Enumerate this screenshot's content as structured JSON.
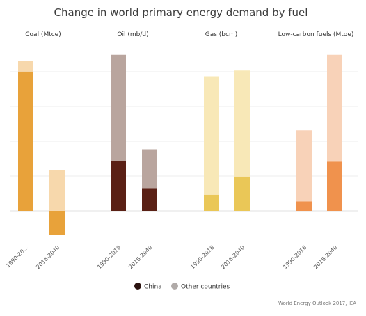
{
  "chart_data": {
    "type": "bar",
    "title": "Change in world primary energy demand by fuel",
    "ylim": [
      -140,
      900
    ],
    "gridlines": [
      0,
      200,
      400,
      600,
      800
    ],
    "grid": true,
    "legend_placement": "bottom-center",
    "panels": [
      {
        "label": "Coal (Mtce)",
        "color_china": "#e8a23a",
        "color_other": "#f7d8ac",
        "bars": [
          {
            "category": "1990-20...",
            "china": 801,
            "other": 59
          },
          {
            "category": "2016-2040",
            "china": -140,
            "other": 236
          }
        ]
      },
      {
        "label": "Oil (mb/d)",
        "color_china": "#5a2015",
        "color_other": "#b9a59e",
        "bars": [
          {
            "category": "1990-2016",
            "china": 288,
            "other": 609
          },
          {
            "category": "2016-2040",
            "china": 130,
            "other": 224
          }
        ]
      },
      {
        "label": "Gas (bcm)",
        "color_china": "#eac757",
        "color_other": "#f8e8b7",
        "bars": [
          {
            "category": "1990-2016",
            "china": 93,
            "other": 681
          },
          {
            "category": "2016-2040",
            "china": 197,
            "other": 610
          }
        ]
      },
      {
        "label": "Low-carbon fuels (Mtoe)",
        "color_china": "#f0924d",
        "color_other": "#f8d2b8",
        "bars": [
          {
            "category": "1990-2016",
            "china": 54,
            "other": 409
          },
          {
            "category": "2016-2040",
            "china": 283,
            "other": 614
          }
        ]
      }
    ],
    "legend": [
      {
        "name": "China",
        "color": "#2b1310"
      },
      {
        "name": "Other countries",
        "color": "#b0aaa8"
      }
    ],
    "source": "World Energy Outlook 2017, IEA"
  }
}
